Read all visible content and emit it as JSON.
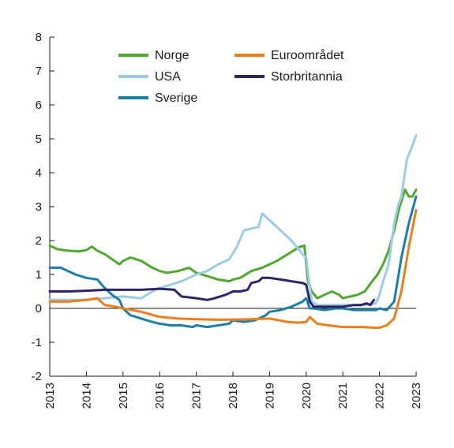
{
  "chart_data": {
    "type": "line",
    "title": "",
    "xlabel": "",
    "ylabel": "",
    "xlim": [
      2013,
      2023
    ],
    "ylim": [
      -2,
      8
    ],
    "x_ticks": [
      "2013",
      "2014",
      "2015",
      "2016",
      "2017",
      "2018",
      "2019",
      "2020",
      "2021",
      "2022",
      "2023"
    ],
    "y_ticks": [
      "8",
      "7",
      "6",
      "5",
      "4",
      "3",
      "2",
      "1",
      "0",
      "-1",
      "-2"
    ],
    "grid": false,
    "legend_placement": "top",
    "series": [
      {
        "name": "Norge",
        "color": "#4ea72e",
        "x": [
          2013.0,
          2013.2,
          2013.5,
          2013.8,
          2014.0,
          2014.15,
          2014.3,
          2014.5,
          2014.7,
          2014.9,
          2015.0,
          2015.2,
          2015.5,
          2015.8,
          2016.0,
          2016.2,
          2016.5,
          2016.8,
          2017.0,
          2017.3,
          2017.6,
          2017.9,
          2018.0,
          2018.2,
          2018.5,
          2018.8,
          2019.0,
          2019.2,
          2019.5,
          2019.8,
          2019.95,
          2020.05,
          2020.15,
          2020.3,
          2020.5,
          2020.7,
          2020.9,
          2021.0,
          2021.2,
          2021.4,
          2021.6,
          2021.8,
          2021.95,
          2022.1,
          2022.25,
          2022.4,
          2022.55,
          2022.7,
          2022.8,
          2022.9,
          2023.0
        ],
        "values": [
          1.85,
          1.75,
          1.7,
          1.68,
          1.72,
          1.82,
          1.7,
          1.6,
          1.45,
          1.3,
          1.4,
          1.5,
          1.4,
          1.2,
          1.1,
          1.05,
          1.1,
          1.2,
          1.05,
          0.95,
          0.85,
          0.8,
          0.85,
          0.9,
          1.1,
          1.2,
          1.3,
          1.4,
          1.6,
          1.8,
          1.85,
          0.8,
          0.5,
          0.3,
          0.4,
          0.5,
          0.4,
          0.3,
          0.35,
          0.4,
          0.5,
          0.8,
          1.0,
          1.3,
          1.7,
          2.3,
          3.0,
          3.5,
          3.3,
          3.3,
          3.5
        ]
      },
      {
        "name": "USA",
        "color": "#9dcbe6",
        "x": [
          2013.0,
          2013.5,
          2014.0,
          2014.5,
          2015.0,
          2015.5,
          2015.8,
          2016.0,
          2016.3,
          2016.6,
          2017.0,
          2017.3,
          2017.6,
          2017.9,
          2018.1,
          2018.3,
          2018.5,
          2018.7,
          2018.8,
          2019.0,
          2019.3,
          2019.6,
          2019.9,
          2020.0,
          2020.15,
          2020.3,
          2020.6,
          2021.0,
          2021.3,
          2021.6,
          2021.9,
          2022.0,
          2022.1,
          2022.25,
          2022.4,
          2022.5,
          2022.6,
          2022.75,
          2022.9,
          2023.0
        ],
        "values": [
          0.25,
          0.25,
          0.25,
          0.3,
          0.35,
          0.3,
          0.5,
          0.6,
          0.7,
          0.8,
          1.0,
          1.1,
          1.3,
          1.45,
          1.8,
          2.3,
          2.35,
          2.4,
          2.8,
          2.6,
          2.3,
          2.0,
          1.6,
          1.5,
          0.2,
          0.1,
          0.1,
          0.1,
          0.1,
          0.1,
          0.15,
          0.4,
          0.8,
          1.3,
          2.5,
          3.0,
          3.3,
          4.4,
          4.8,
          5.1
        ]
      },
      {
        "name": "Sverige",
        "color": "#1b7ea6",
        "x": [
          2013.0,
          2013.3,
          2013.7,
          2014.0,
          2014.3,
          2014.5,
          2014.7,
          2014.9,
          2015.0,
          2015.2,
          2015.5,
          2015.8,
          2016.0,
          2016.3,
          2016.6,
          2016.9,
          2017.0,
          2017.3,
          2017.6,
          2017.9,
          2018.0,
          2018.3,
          2018.6,
          2018.9,
          2019.0,
          2019.3,
          2019.6,
          2019.9,
          2020.0,
          2020.1,
          2020.2,
          2020.5,
          2020.8,
          2021.0,
          2021.3,
          2021.6,
          2021.9,
          2022.0,
          2022.2,
          2022.4,
          2022.6,
          2022.8,
          2023.0
        ],
        "values": [
          1.2,
          1.2,
          1.0,
          0.9,
          0.85,
          0.6,
          0.4,
          0.25,
          0.0,
          -0.2,
          -0.3,
          -0.4,
          -0.45,
          -0.5,
          -0.5,
          -0.55,
          -0.5,
          -0.55,
          -0.5,
          -0.45,
          -0.35,
          -0.4,
          -0.35,
          -0.2,
          -0.1,
          -0.05,
          0.05,
          0.2,
          0.3,
          0.0,
          0.0,
          -0.05,
          0.0,
          0.0,
          -0.05,
          -0.05,
          -0.05,
          0.0,
          -0.05,
          0.2,
          1.5,
          2.5,
          3.3
        ]
      },
      {
        "name": "Euroområdet",
        "color": "#ee7d1c",
        "x": [
          2013.0,
          2013.5,
          2014.0,
          2014.3,
          2014.5,
          2014.8,
          2015.0,
          2015.5,
          2016.0,
          2016.5,
          2017.0,
          2017.5,
          2018.0,
          2018.5,
          2019.0,
          2019.5,
          2019.8,
          2020.0,
          2020.1,
          2020.3,
          2020.6,
          2021.0,
          2021.5,
          2021.9,
          2022.0,
          2022.2,
          2022.4,
          2022.6,
          2022.8,
          2023.0
        ],
        "values": [
          0.2,
          0.2,
          0.25,
          0.3,
          0.1,
          0.05,
          0.0,
          -0.1,
          -0.25,
          -0.3,
          -0.32,
          -0.33,
          -0.33,
          -0.32,
          -0.3,
          -0.4,
          -0.42,
          -0.4,
          -0.25,
          -0.45,
          -0.5,
          -0.55,
          -0.55,
          -0.57,
          -0.57,
          -0.5,
          -0.3,
          0.5,
          1.8,
          2.9
        ]
      },
      {
        "name": "Storbritannia",
        "color": "#2c2466",
        "x": [
          2013.0,
          2013.5,
          2014.0,
          2014.5,
          2015.0,
          2015.5,
          2016.0,
          2016.4,
          2016.6,
          2017.0,
          2017.3,
          2017.5,
          2017.8,
          2018.0,
          2018.2,
          2018.4,
          2018.5,
          2018.7,
          2018.8,
          2019.0,
          2019.3,
          2019.6,
          2019.9,
          2020.0,
          2020.1,
          2020.2,
          2020.5,
          2020.8,
          2021.0,
          2021.3,
          2021.5,
          2021.65,
          2021.75,
          2021.85
        ],
        "values": [
          0.5,
          0.5,
          0.52,
          0.55,
          0.55,
          0.55,
          0.58,
          0.55,
          0.35,
          0.3,
          0.25,
          0.3,
          0.4,
          0.5,
          0.5,
          0.55,
          0.75,
          0.8,
          0.9,
          0.9,
          0.85,
          0.8,
          0.75,
          0.7,
          0.2,
          0.05,
          0.05,
          0.05,
          0.05,
          0.1,
          0.1,
          0.15,
          0.1,
          0.25
        ]
      }
    ],
    "legend_order": [
      0,
      3,
      1,
      4,
      2
    ]
  }
}
